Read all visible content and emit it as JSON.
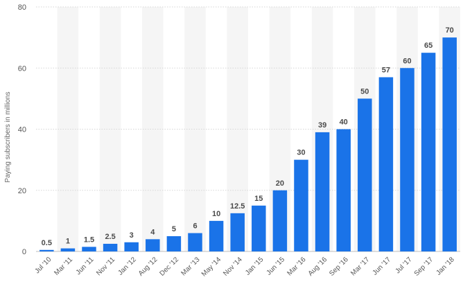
{
  "chart_data": {
    "type": "bar",
    "categories": [
      "Jul '10",
      "Mar '11",
      "Jun '11",
      "Nov '11",
      "Jan '12",
      "Aug '12",
      "Dec '12",
      "Mar '13",
      "May '14",
      "Nov '14",
      "Jan '15",
      "Jun '15",
      "Mar '16",
      "Aug '16",
      "Sep '16",
      "Mar '17",
      "Jun '17",
      "Jul '17",
      "Sep '17",
      "Jan '18"
    ],
    "values": [
      0.5,
      1,
      1.5,
      2.5,
      3,
      4,
      5,
      6,
      10,
      12.5,
      15,
      20,
      30,
      39,
      40,
      50,
      57,
      60,
      65,
      70
    ],
    "value_labels": [
      "0.5",
      "1",
      "1.5",
      "2.5",
      "3",
      "4",
      "5",
      "6",
      "10",
      "12.5",
      "15",
      "20",
      "30",
      "39",
      "40",
      "50",
      "57",
      "60",
      "65",
      "70"
    ],
    "ylabel": "Paying subscribers in millions",
    "ylim": [
      0,
      80
    ],
    "yticks": [
      0,
      20,
      40,
      60,
      80
    ],
    "ytick_labels": [
      "0",
      "20",
      "40",
      "60",
      "80"
    ],
    "grid": true,
    "bar_color": "#1a73e8",
    "stripe_color": "#f5f5f5",
    "grid_color": "#d6d6d6",
    "label_color": "#4a4a4a",
    "tick_color": "#555555"
  }
}
